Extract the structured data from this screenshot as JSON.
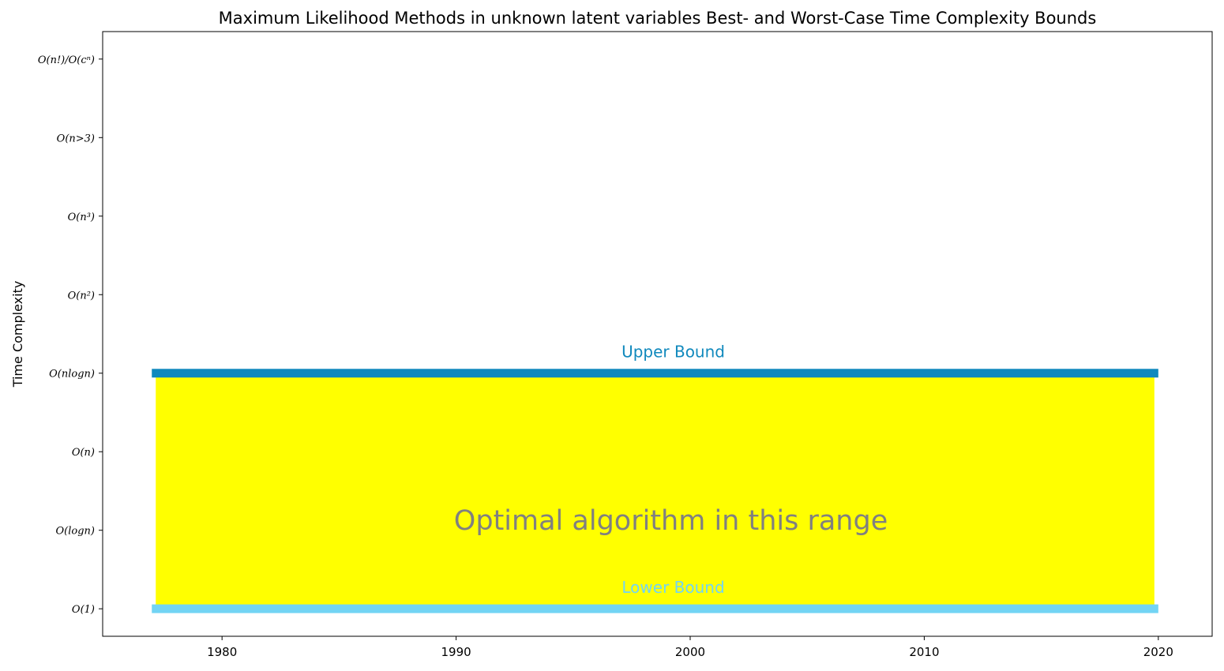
{
  "chart_data": {
    "type": "area",
    "title": "Maximum Likelihood Methods in unknown latent variables Best- and Worst-Case Time Complexity Bounds",
    "xlabel": "",
    "ylabel": "Time Complexity",
    "xlim": [
      1974.9,
      2022.3
    ],
    "ylim": [
      -0.35,
      7.35
    ],
    "x_ticks": [
      1980,
      1990,
      2000,
      2010,
      2020
    ],
    "x_tick_labels": [
      "1980",
      "1990",
      "2000",
      "2010",
      "2020"
    ],
    "y_ticks": [
      0,
      1,
      2,
      3,
      4,
      5,
      6,
      7
    ],
    "y_tick_labels": [
      "O(1)",
      "O(logn)",
      "O(n)",
      "O(nlogn)",
      "O(n²)",
      "O(n³)",
      "O(n>3)",
      "O(n!)/O(cⁿ)"
    ],
    "grid": false,
    "fill_region": {
      "x": [
        1977,
        2020
      ],
      "y_lower": 0,
      "y_upper": 3,
      "color": "#ffff00",
      "label": "Optimal algorithm in this range",
      "label_color": "#808080"
    },
    "series": [
      {
        "name": "Upper Bound",
        "x": [
          1977,
          2020
        ],
        "y": [
          3,
          3
        ],
        "color": "#1089bd"
      },
      {
        "name": "Lower Bound",
        "x": [
          1977,
          2020
        ],
        "y": [
          0,
          0
        ],
        "color": "#72d4f4"
      }
    ]
  }
}
